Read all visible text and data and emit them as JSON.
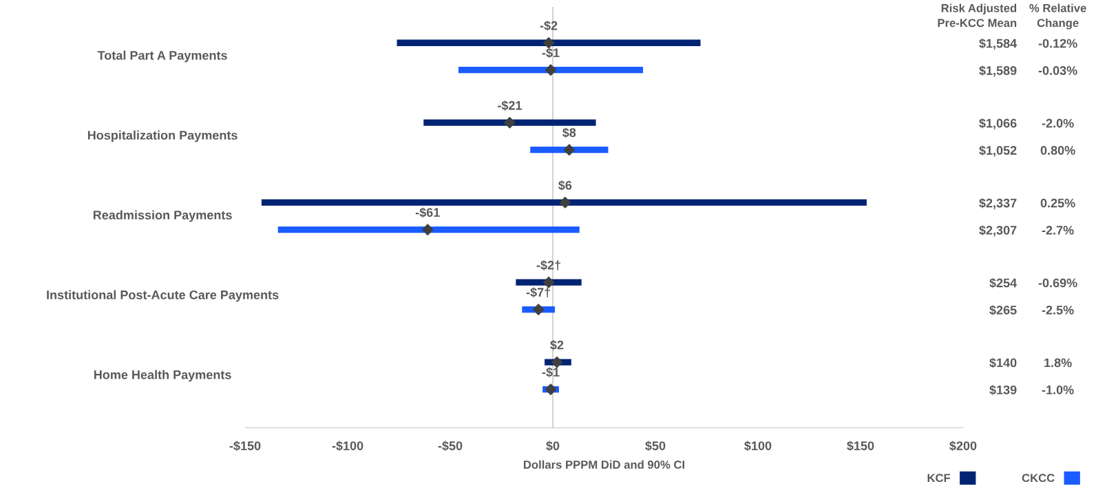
{
  "chart_data": {
    "type": "bar",
    "orientation": "horizontal",
    "xlabel": "Dollars PPPM DiD and 90% CI",
    "categories": [
      "Total Part A Payments",
      "Hospitalization Payments",
      "Readmission Payments",
      "Institutional Post-Acute Care Payments",
      "Home Health Payments"
    ],
    "series": [
      {
        "name": "KCF",
        "color": "#002473",
        "base": [
          -76,
          -63,
          -142,
          -18,
          -4
        ],
        "values": [
          148,
          84,
          295,
          32,
          13
        ]
      },
      {
        "name": "CKCC",
        "color": "#1a5cff",
        "base": [
          -46,
          -11,
          -134,
          -15,
          -5
        ],
        "values": [
          90,
          38,
          147,
          16,
          8
        ]
      },
      {
        "type": "scatter",
        "color": "#404040",
        "values": [
          -2,
          -21,
          6,
          -2,
          2
        ],
        "value_labels": [
          "-$2",
          "-$21",
          "$6",
          "-$2†",
          "$2"
        ]
      },
      {
        "type": "scatter",
        "color": "#404040",
        "values": [
          -1,
          8,
          -61,
          -7,
          -1
        ],
        "value_labels": [
          "-$1",
          "$8",
          "-$61",
          "-$7†",
          "-$1"
        ]
      }
    ],
    "marker": "diamond",
    "xlim": [
      -150,
      200
    ],
    "xticks": [
      {
        "value": -150,
        "label": "-$150"
      },
      {
        "value": -100,
        "label": "-$100"
      },
      {
        "value": -50,
        "label": "-$50"
      },
      {
        "value": 0,
        "label": "$0"
      },
      {
        "value": 50,
        "label": "$50"
      },
      {
        "value": 100,
        "label": "$100"
      },
      {
        "value": 150,
        "label": "$150"
      },
      {
        "value": 200,
        "label": "$200"
      }
    ],
    "ref_lines": [
      {
        "axis": "x",
        "value": 0,
        "color": "#bfbfbf"
      }
    ],
    "legend": "bottom right",
    "annotations": [
      "Risk Adjusted\nPre-KCC Mean",
      "% Relative\nChange",
      "$1,584",
      "-0.12%",
      "$1,589",
      "-0.03%",
      "$1,066",
      "-2.0%",
      "$1,052",
      "0.80%",
      "$2,337",
      "0.25%",
      "$2,307",
      "-2.7%",
      "$254",
      "-0.69%",
      "$265",
      "-2.5%",
      "$140",
      "1.8%",
      "$139",
      "-1.0%"
    ]
  }
}
